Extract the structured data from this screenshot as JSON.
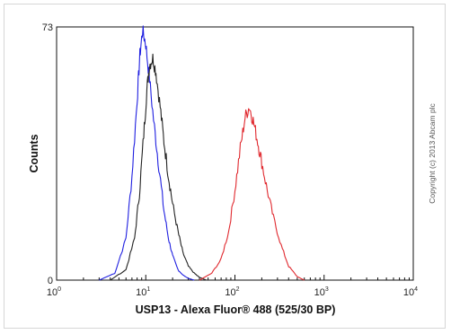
{
  "chart_data": {
    "type": "line",
    "xlabel": "USP13 - Alexa Fluor® 488 (525/30 BP)",
    "ylabel": "Counts",
    "xscale": "log",
    "xlim": [
      1,
      10000
    ],
    "ylim": [
      0,
      73
    ],
    "y_ticks": [
      "0",
      "73"
    ],
    "x_ticks": [
      {
        "base": "10",
        "exp": "0"
      },
      {
        "base": "10",
        "exp": "1"
      },
      {
        "base": "10",
        "exp": "2"
      },
      {
        "base": "10",
        "exp": "3"
      },
      {
        "base": "10",
        "exp": "4"
      }
    ],
    "grid": false,
    "annotation": "Copyright (c) 2013 Abcam plc",
    "series": [
      {
        "color": "#1f1fe0",
        "x": [
          3.0,
          4.5,
          6.0,
          7.0,
          8.0,
          8.6,
          9.2,
          10.0,
          11.0,
          12.5,
          14.0,
          16.0,
          18.0,
          20.0,
          23.0,
          26.0,
          30.0,
          35.0
        ],
        "y": [
          0,
          2,
          12,
          30,
          52,
          65,
          72,
          68,
          58,
          44,
          33,
          20,
          12,
          7,
          3,
          1.5,
          0.5,
          0
        ]
      },
      {
        "color": "#222222",
        "x": [
          4.0,
          6.0,
          7.5,
          8.5,
          9.5,
          10.3,
          11.0,
          12.0,
          13.0,
          14.5,
          16.0,
          18.0,
          20.0,
          23.0,
          26.0,
          30.0,
          35.0,
          40.0,
          48.0
        ],
        "y": [
          0,
          3,
          12,
          25,
          42,
          55,
          62,
          64,
          60,
          50,
          40,
          30,
          22,
          14,
          8,
          4,
          2,
          0.8,
          0
        ]
      },
      {
        "color": "#e0282e",
        "x": [
          40,
          55,
          70,
          85,
          100,
          115,
          130,
          145,
          160,
          180,
          200,
          230,
          270,
          330,
          400,
          500,
          600
        ],
        "y": [
          0,
          2,
          6,
          14,
          26,
          38,
          47,
          50,
          46,
          40,
          34,
          26,
          18,
          10,
          4,
          1,
          0
        ]
      }
    ]
  }
}
